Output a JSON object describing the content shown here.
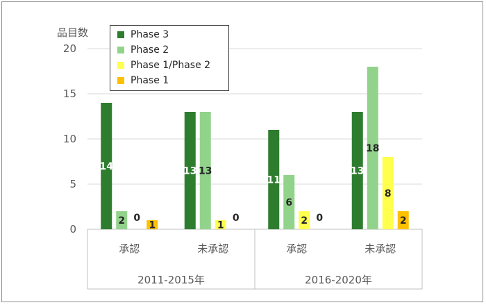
{
  "chart_data": {
    "type": "bar",
    "ylabel": "品目数",
    "ylim": [
      0,
      20
    ],
    "yticks": [
      0,
      5,
      10,
      15,
      20
    ],
    "grid": true,
    "legend_position": "top-left",
    "groups": [
      {
        "label": "2011-2015年",
        "categories": [
          "承認",
          "未承認"
        ]
      },
      {
        "label": "2016-2020年",
        "categories": [
          "承認",
          "未承認"
        ]
      }
    ],
    "categories": [
      "承認",
      "未承認",
      "承認",
      "未承認"
    ],
    "series": [
      {
        "name": "Phase 3",
        "color": "#2e7d2e",
        "label_color": "#ffffff",
        "values": [
          14,
          13,
          11,
          13
        ]
      },
      {
        "name": "Phase 2",
        "color": "#92d38c",
        "label_color": "#262626",
        "values": [
          2,
          13,
          6,
          18
        ]
      },
      {
        "name": "Phase 1/Phase 2",
        "color": "#ffff4d",
        "label_color": "#262626",
        "values": [
          0,
          1,
          2,
          8
        ]
      },
      {
        "name": "Phase 1",
        "color": "#ffc000",
        "label_color": "#262626",
        "values": [
          1,
          0,
          0,
          2
        ]
      }
    ]
  }
}
